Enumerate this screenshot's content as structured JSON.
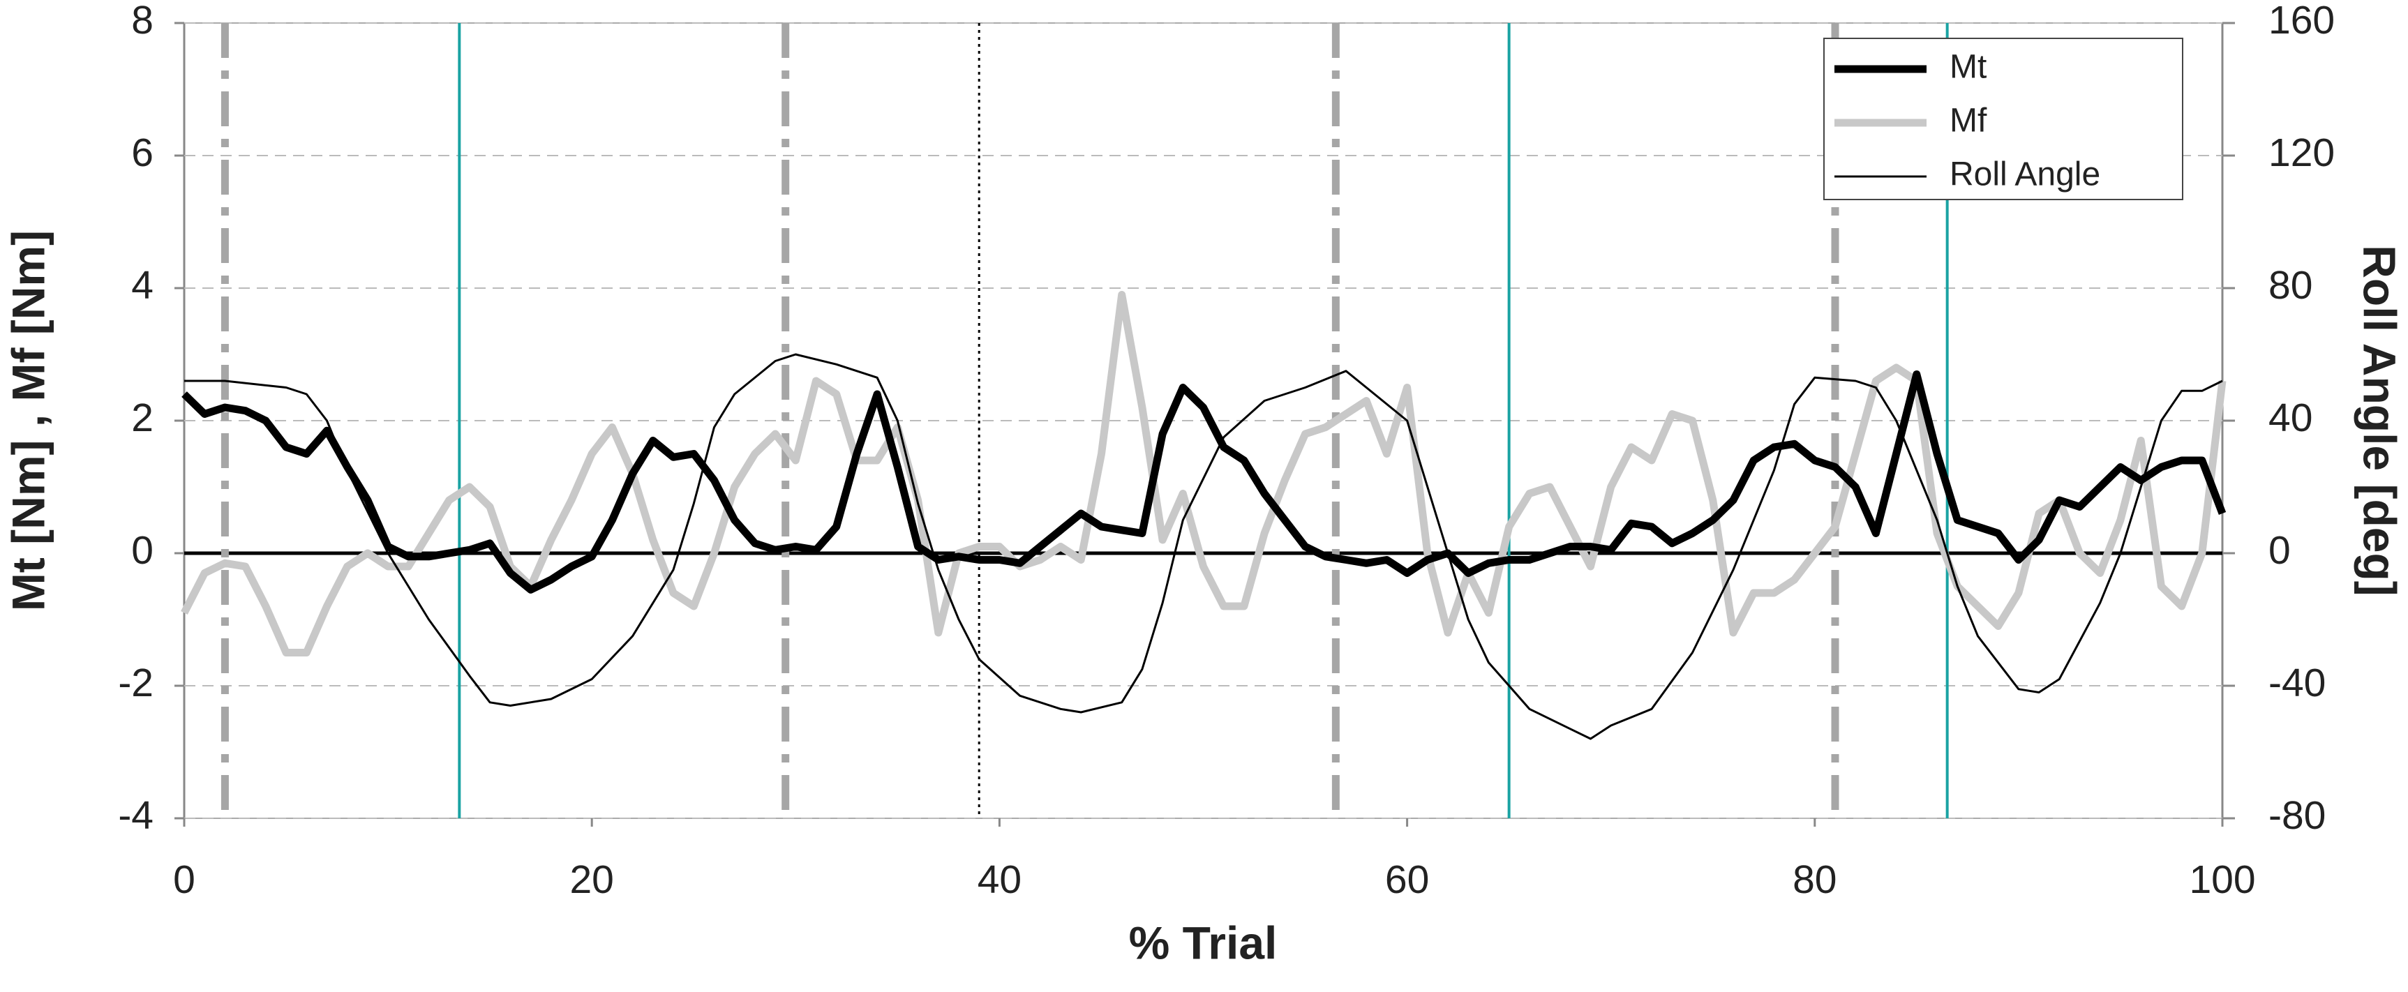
{
  "chart_data": {
    "type": "line",
    "x_label": "% Trial",
    "y_label": "Mt [Nm] , Mf [Nm]",
    "y2_label": "Roll Angle [deg]",
    "xlim": [
      0,
      100
    ],
    "xticks": [
      0,
      20,
      40,
      60,
      80,
      100
    ],
    "ylim": [
      -4,
      8
    ],
    "yticks": [
      -4,
      -2,
      0,
      2,
      4,
      6,
      8
    ],
    "y2lim": [
      -80,
      160
    ],
    "y2ticks": [
      -80,
      -40,
      0,
      40,
      80,
      120,
      160
    ],
    "grid": true,
    "legend": "upper right",
    "x": [
      0,
      1,
      2,
      3,
      4,
      5,
      6,
      7,
      8,
      9,
      10,
      11,
      12,
      13,
      14,
      15,
      16,
      17,
      18,
      19,
      20,
      21,
      22,
      23,
      24,
      25,
      26,
      27,
      28,
      29,
      30,
      31,
      32,
      33,
      34,
      35,
      36,
      37,
      38,
      39,
      40,
      41,
      42,
      43,
      44,
      45,
      46,
      47,
      48,
      49,
      50,
      51,
      52,
      53,
      54,
      55,
      56,
      57,
      58,
      59,
      60,
      61,
      62,
      63,
      64,
      65,
      66,
      67,
      68,
      69,
      70,
      71,
      72,
      73,
      74,
      75,
      76,
      77,
      78,
      79,
      80,
      81,
      82,
      83,
      84,
      85,
      86,
      87,
      88,
      89,
      90,
      91,
      92,
      93,
      94,
      95,
      96,
      97,
      98,
      99,
      100
    ],
    "series": [
      {
        "name": "Mt",
        "color": "#000000",
        "width": 11,
        "values": [
          2.4,
          2.1,
          2.2,
          2.15,
          2.0,
          1.6,
          1.5,
          1.85,
          1.3,
          0.8,
          0.1,
          -0.05,
          -0.05,
          0.0,
          0.05,
          0.15,
          -0.3,
          -0.55,
          -0.4,
          -0.2,
          -0.05,
          0.5,
          1.2,
          1.7,
          1.45,
          1.5,
          1.1,
          0.5,
          0.15,
          0.05,
          0.1,
          0.05,
          0.4,
          1.5,
          2.4,
          1.3,
          0.1,
          -0.1,
          -0.05,
          -0.1,
          -0.1,
          -0.15,
          0.1,
          0.35,
          0.6,
          0.4,
          0.35,
          0.3,
          1.8,
          2.5,
          2.2,
          1.6,
          1.4,
          0.9,
          0.5,
          0.1,
          -0.05,
          -0.1,
          -0.15,
          -0.1,
          -0.3,
          -0.1,
          0.0,
          -0.3,
          -0.15,
          -0.1,
          -0.1,
          0.0,
          0.1,
          0.1,
          0.05,
          0.45,
          0.4,
          0.15,
          0.3,
          0.5,
          0.8,
          1.4,
          1.6,
          1.65,
          1.4,
          1.3,
          1.0,
          0.3,
          1.5,
          2.7,
          1.5,
          0.5,
          0.4,
          0.3,
          -0.1,
          0.2,
          0.8,
          0.7,
          1.0,
          1.3,
          1.1,
          1.3,
          1.4,
          1.4,
          0.6
        ]
      },
      {
        "name": "Mf",
        "color": "#c8c8c8",
        "width": 11,
        "values": [
          -0.9,
          -0.3,
          -0.15,
          -0.2,
          -0.8,
          -1.5,
          -1.5,
          -0.8,
          -0.2,
          0.0,
          -0.2,
          -0.2,
          0.3,
          0.8,
          1.0,
          0.7,
          -0.2,
          -0.5,
          0.2,
          0.8,
          1.5,
          1.9,
          1.2,
          0.2,
          -0.6,
          -0.8,
          0.0,
          1.0,
          1.5,
          1.8,
          1.4,
          2.6,
          2.4,
          1.4,
          1.4,
          1.9,
          0.8,
          -1.2,
          0.0,
          0.1,
          0.1,
          -0.2,
          -0.1,
          0.1,
          -0.1,
          1.5,
          3.9,
          2.2,
          0.2,
          0.9,
          -0.2,
          -0.8,
          -0.8,
          0.3,
          1.1,
          1.8,
          1.9,
          2.1,
          2.3,
          1.5,
          2.5,
          0.0,
          -1.2,
          -0.3,
          -0.9,
          0.4,
          0.9,
          1.0,
          0.4,
          -0.2,
          1.0,
          1.6,
          1.4,
          2.1,
          2.0,
          0.8,
          -1.2,
          -0.6,
          -0.6,
          -0.4,
          0.0,
          0.4,
          1.5,
          2.6,
          2.8,
          2.6,
          0.3,
          -0.5,
          -0.8,
          -1.1,
          -0.6,
          0.6,
          0.8,
          0.0,
          -0.3,
          0.5,
          1.7,
          -0.5,
          -0.8,
          0.0,
          2.6
        ]
      },
      {
        "name": "Roll Angle",
        "color": "#000000",
        "width": 3,
        "axis": "y2",
        "x": [
          0,
          2,
          5,
          6,
          7,
          8,
          10,
          12,
          14,
          15,
          16,
          18,
          20,
          22,
          24,
          25,
          26,
          27,
          29,
          30,
          32,
          34,
          35,
          36,
          37,
          38,
          39,
          41,
          43,
          44,
          46,
          47,
          48,
          49,
          51,
          53,
          55,
          57,
          58,
          60,
          61,
          62,
          63,
          64,
          65,
          66,
          68,
          69,
          70,
          72,
          74,
          76,
          78,
          79,
          80,
          82,
          83,
          84,
          86,
          87,
          88,
          89,
          90,
          91,
          92,
          94,
          95,
          96,
          97,
          98,
          99,
          100
        ],
        "values": [
          52,
          52,
          50,
          48,
          40,
          25,
          0,
          -20,
          -37,
          -45,
          -46,
          -44,
          -38,
          -25,
          -5,
          15,
          38,
          48,
          58,
          60,
          57,
          53,
          40,
          15,
          -5,
          -20,
          -32,
          -43,
          -47,
          -48,
          -45,
          -35,
          -15,
          10,
          35,
          46,
          50,
          55,
          50,
          40,
          20,
          0,
          -20,
          -33,
          -40,
          -47,
          -53,
          -56,
          -52,
          -47,
          -30,
          -5,
          25,
          45,
          53,
          52,
          50,
          40,
          10,
          -10,
          -25,
          -33,
          -41,
          -42,
          -38,
          -15,
          0,
          20,
          40,
          49,
          49,
          52
        ]
      }
    ],
    "reference_lines": [
      {
        "x": 2,
        "style": "dashdot",
        "color": "#a6a6a6"
      },
      {
        "x": 13.5,
        "style": "solid",
        "color": "#1aa3a3"
      },
      {
        "x": 29.5,
        "style": "dashdot",
        "color": "#a6a6a6"
      },
      {
        "x": 39,
        "style": "dotted",
        "color": "#000000"
      },
      {
        "x": 56.5,
        "style": "dashdot",
        "color": "#a6a6a6"
      },
      {
        "x": 65,
        "style": "solid",
        "color": "#1aa3a3"
      },
      {
        "x": 81,
        "style": "dashdot",
        "color": "#a6a6a6"
      },
      {
        "x": 86.5,
        "style": "solid",
        "color": "#1aa3a3"
      }
    ]
  }
}
